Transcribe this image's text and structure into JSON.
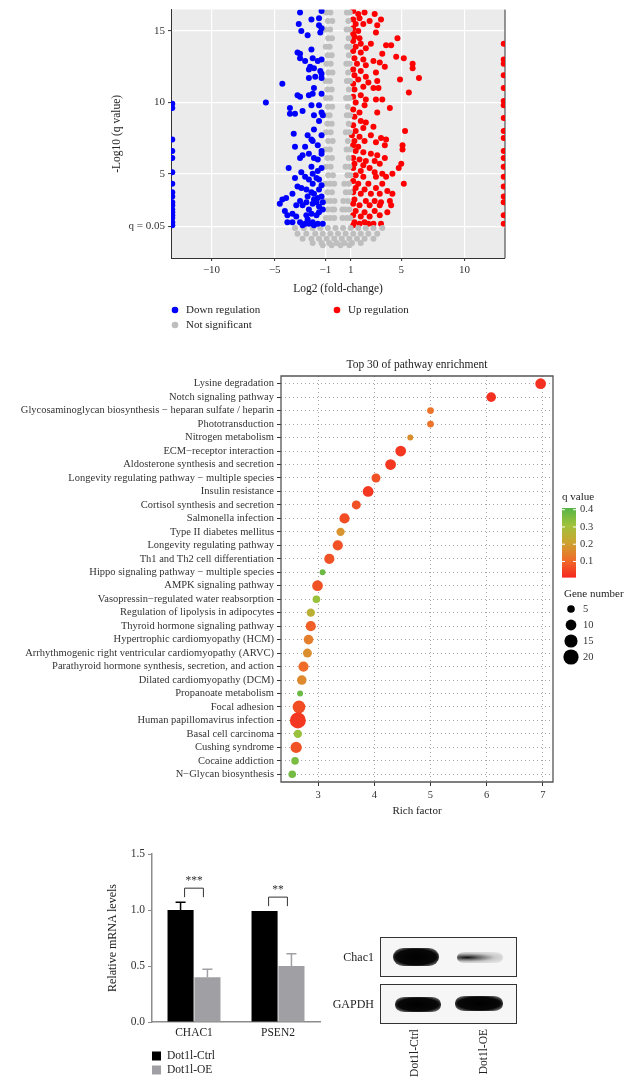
{
  "chart_data": [
    {
      "type": "scatter",
      "xlabel": "Log2 (fold-change)",
      "ylabel": "-Log10 (q value)",
      "xlim": [
        -13.2,
        13.2
      ],
      "ylim": [
        -0.9,
        16.5
      ],
      "xticks": [
        {
          "value": -10,
          "label": "−10"
        },
        {
          "value": -5,
          "label": "−5"
        },
        {
          "value": -1,
          "label": "−1"
        },
        1,
        5,
        10
      ],
      "yticks": [
        5,
        10,
        15
      ],
      "ref_lines": [
        {
          "axis": "y",
          "value": 1.301,
          "color": "#ffffff"
        }
      ],
      "annotations": [
        "q = 0.05"
      ],
      "grid": true,
      "legend": "bottom left",
      "marker": "circle",
      "series": [
        {
          "name": "Down regulation",
          "color": "#0000ff",
          "x": [
            -3.0,
            -1.3,
            -2.1,
            -1.5,
            -3.1,
            -1.5,
            -2.9,
            -2.4,
            -1.4,
            -1.3,
            -2.1,
            -3.2,
            -3.0,
            -3.0,
            -2.6,
            -2.0,
            -1.6,
            -1.3,
            -2.2,
            -1.9,
            -2.3,
            -1.4,
            -1.3,
            -1.8,
            -1.3,
            -2.3,
            -4.4,
            -1.9,
            -3.2,
            -3.0,
            -2.3,
            -2.0,
            -1.3,
            -5.7,
            -2.1,
            -1.5,
            -3.8,
            -3.8,
            -3.4,
            -2.8,
            -1.3,
            -1.2,
            -1.9,
            -1.5,
            -3.5,
            -1.9,
            -2.4,
            -2.1,
            -2.0,
            -1.3,
            -3.4,
            -2.6,
            -1.6,
            -1.3,
            -2.8,
            -3.0,
            -2.3,
            -1.9,
            -1.6,
            -1.3,
            -3.9,
            -3.4,
            -2.1,
            -2.0,
            -1.6,
            -1.3,
            -2.9,
            -2.6,
            -2.3,
            -2.0,
            -1.7,
            -1.5,
            -3.2,
            -2.9,
            -2.5,
            -2.1,
            -1.9,
            -1.5,
            -1.3,
            -3.6,
            -4.1,
            -4.4,
            -4.6,
            -4.2,
            -4.0,
            -3.6,
            -3.3,
            -3.0,
            -2.8,
            -2.5,
            -2.3,
            -2.0,
            -1.7,
            -1.6,
            -1.3,
            -1.2,
            -2.5,
            -2.1,
            -1.7,
            -1.5,
            -1.2,
            -4.0,
            -3.6,
            -3.0,
            -2.6,
            -2.4,
            -2.0,
            -1.6,
            -1.2,
            -2.8,
            -2.3,
            -1.9,
            -3.3,
            -1.5,
            -1.9,
            -2.4,
            -13.1,
            -13.1,
            -13.1,
            -13.1,
            -13.1,
            -13.1,
            -13.1,
            -13.1,
            -13.1,
            -13.1,
            -13.1,
            -13.1,
            -13.1,
            -13.1,
            -13.1,
            -13.1,
            -13.1
          ],
          "values": [
            16.3,
            16.4,
            15.8,
            15.9,
            15.5,
            15.4,
            15.0,
            14.7,
            14.9,
            15.2,
            13.7,
            13.5,
            13.4,
            13.1,
            12.9,
            13.1,
            12.9,
            13.0,
            12.5,
            12.4,
            12.3,
            12.2,
            12.0,
            11.8,
            11.7,
            11.7,
            11.3,
            11.0,
            10.5,
            10.4,
            10.5,
            10.6,
            10.6,
            10.0,
            9.8,
            9.8,
            9.6,
            9.2,
            9.2,
            9.4,
            9.3,
            9.1,
            9.1,
            8.7,
            7.8,
            8.1,
            7.7,
            7.4,
            7.3,
            7.7,
            6.9,
            6.9,
            7.0,
            6.6,
            6.3,
            6.1,
            6.4,
            6.1,
            6.0,
            6.4,
            5.4,
            4.7,
            5.5,
            5.0,
            5.2,
            5.4,
            5.1,
            4.8,
            4.6,
            4.3,
            4.7,
            4.6,
            4.1,
            4.0,
            3.9,
            3.7,
            3.6,
            3.9,
            4.2,
            3.6,
            3.3,
            3.2,
            2.9,
            2.4,
            2.1,
            2.2,
            2.0,
            3.1,
            2.8,
            3.0,
            2.5,
            2.9,
            3.0,
            3.3,
            3.4,
            3.0,
            2.1,
            2.2,
            2.1,
            2.3,
            2.5,
            1.6,
            1.6,
            1.6,
            1.5,
            1.8,
            1.6,
            1.5,
            1.5,
            1.4,
            1.5,
            1.4,
            2.8,
            2.7,
            3.2,
            3.4,
            9.9,
            9.6,
            7.4,
            6.6,
            6.1,
            5.1,
            4.3,
            3.7,
            3.4,
            3.0,
            2.8,
            2.5,
            2.3,
            2.1,
            1.9,
            1.6,
            1.4
          ]
        },
        {
          "name": "Not significant",
          "color": "#bebebe",
          "x": [
            -0.95,
            -0.6,
            0.7,
            0.93,
            -0.8,
            -0.45,
            0.82,
            -1.0,
            -0.62,
            0.68,
            0.95,
            -0.78,
            -0.48,
            0.84,
            -0.97,
            -0.66,
            0.72,
            0.94,
            -0.82,
            -0.5,
            0.86,
            -0.92,
            -0.58,
            0.66,
            0.93,
            -0.76,
            -0.44,
            0.8,
            -0.98,
            -0.64,
            0.7,
            0.95,
            -0.84,
            -0.5,
            0.86,
            -0.95,
            -0.6,
            0.64,
            0.92,
            -0.8,
            -0.46,
            0.78,
            -1.0,
            -0.66,
            0.7,
            0.95,
            -0.84,
            -0.5,
            0.85,
            -0.94,
            -0.58,
            0.62,
            0.92,
            -0.78,
            -0.42,
            0.78,
            -0.98,
            -0.64,
            0.68,
            0.95,
            -0.84,
            -0.48,
            0.85,
            -0.94,
            -0.58,
            0.6,
            0.9,
            -0.78,
            -0.4,
            0.75,
            0.97,
            -0.98,
            -0.62,
            -0.3,
            0.5,
            0.86,
            -0.84,
            -0.48,
            0.62,
            0.95,
            -0.96,
            -0.62,
            -0.28,
            0.42,
            0.78,
            -0.8,
            -0.46,
            -0.3,
            0.35,
            0.6,
            0.9,
            -0.95,
            -0.62,
            -0.3,
            0.35,
            0.68,
            0.96,
            -3.4,
            -2.7,
            -2.0,
            -1.4,
            -0.8,
            -0.2,
            0.4,
            1.0,
            1.6,
            2.2,
            2.8,
            3.5,
            -3.2,
            -2.5,
            -1.8,
            -1.2,
            -0.6,
            0,
            0.6,
            1.2,
            1.8,
            2.4,
            3.1,
            -2.8,
            -2.1,
            -1.5,
            -0.9,
            -0.3,
            0.3,
            0.9,
            1.5,
            2.1,
            2.8,
            -2.0,
            -1.3,
            -0.7,
            -0.1,
            0.5,
            1.1,
            1.8,
            -1.2,
            -0.5,
            0.2,
            0.9
          ],
          "values": [
            16.3,
            16.3,
            16.3,
            16.3,
            15.7,
            15.7,
            15.7,
            15.1,
            15.1,
            15.1,
            15.1,
            14.5,
            14.5,
            14.5,
            13.9,
            13.9,
            13.9,
            13.9,
            13.3,
            13.3,
            13.3,
            12.7,
            12.7,
            12.7,
            12.7,
            12.1,
            12.1,
            12.1,
            11.5,
            11.5,
            11.5,
            11.5,
            10.9,
            10.9,
            10.9,
            10.3,
            10.3,
            10.3,
            10.3,
            9.7,
            9.7,
            9.7,
            9.1,
            9.1,
            9.1,
            9.1,
            8.5,
            8.5,
            8.5,
            7.9,
            7.9,
            7.9,
            7.9,
            7.3,
            7.3,
            7.3,
            6.7,
            6.7,
            6.7,
            6.7,
            6.1,
            6.1,
            6.1,
            5.5,
            5.5,
            5.5,
            5.5,
            4.9,
            4.9,
            4.9,
            4.9,
            4.3,
            4.3,
            4.3,
            4.3,
            4.3,
            3.7,
            3.7,
            3.7,
            3.7,
            3.1,
            3.1,
            3.1,
            3.1,
            3.1,
            2.5,
            2.5,
            2.5,
            2.5,
            2.5,
            2.5,
            1.9,
            1.9,
            1.9,
            1.9,
            1.9,
            1.9,
            1.2,
            1.2,
            1.2,
            1.2,
            1.2,
            1.2,
            1.2,
            1.2,
            1.2,
            1.2,
            1.2,
            1.2,
            0.8,
            0.8,
            0.8,
            0.8,
            0.8,
            0.8,
            0.8,
            0.8,
            0.8,
            0.8,
            0.8,
            0.45,
            0.45,
            0.45,
            0.45,
            0.45,
            0.45,
            0.45,
            0.45,
            0.45,
            0.45,
            0.15,
            0.15,
            0.15,
            0.15,
            0.15,
            0.15,
            0.15,
            0,
            0,
            0,
            0
          ]
        },
        {
          "name": "Up regulation",
          "color": "#ff0000",
          "x": [
            1.2,
            1.6,
            2.1,
            2.9,
            1.2,
            1.7,
            2.5,
            3.4,
            1.4,
            2.0,
            3.1,
            1.2,
            1.6,
            1.2,
            3.0,
            1.3,
            1.7,
            4.7,
            1.2,
            1.8,
            2.6,
            3.8,
            4.2,
            1.4,
            2.2,
            1.2,
            1.8,
            3.5,
            4.6,
            5.2,
            1.3,
            2.0,
            2.8,
            3.3,
            5.9,
            1.5,
            2.2,
            3.7,
            5.9,
            1.2,
            1.8,
            3.0,
            1.3,
            2.2,
            6.4,
            1.6,
            2.4,
            3.1,
            4.9,
            1.2,
            2.0,
            1.3,
            2.8,
            3.2,
            1.8,
            5.6,
            1.2,
            2.2,
            3.0,
            3.5,
            1.4,
            2.1,
            1.2,
            1.7,
            4.1,
            3.1,
            1.3,
            1.8,
            2.2,
            1.2,
            2.0,
            2.8,
            1.4,
            5.3,
            1.1,
            1.7,
            2.6,
            3.4,
            1.3,
            2.1,
            3.8,
            3.0,
            1.2,
            1.6,
            3.7,
            5.1,
            5.1,
            1.4,
            2.0,
            2.6,
            3.1,
            1.2,
            1.7,
            3.7,
            2.2,
            2.9,
            1.3,
            2.0,
            3.3,
            5.0,
            1.2,
            1.8,
            2.5,
            2.9,
            3.5,
            4.8,
            1.4,
            2.0,
            3.0,
            3.8,
            4.3,
            1.2,
            1.6,
            2.4,
            3.5,
            5.2,
            1.4,
            2.1,
            3.0,
            3.9,
            1.2,
            1.8,
            2.6,
            3.3,
            4.3,
            1.3,
            2.2,
            2.9,
            3.4,
            4.1,
            1.2,
            1.7,
            2.5,
            3.3,
            4.2,
            1.4,
            2.1,
            2.9,
            3.9,
            1.2,
            1.8,
            2.5,
            3.3,
            1.3,
            2.1,
            2.8,
            3.4,
            1.2,
            1.7,
            2.4,
            13.1,
            13.1,
            13.1,
            13.1,
            13.1,
            13.1,
            13.1,
            13.1,
            13.1,
            13.1,
            13.1,
            13.1,
            13.1,
            13.1,
            13.1,
            13.1,
            13.1,
            13.1,
            13.1
          ],
          "values": [
            16.4,
            16.2,
            16.3,
            16.2,
            15.8,
            15.9,
            15.7,
            15.8,
            15.5,
            15.5,
            15.4,
            15.2,
            15.0,
            14.8,
            14.9,
            14.6,
            14.5,
            14.5,
            14.3,
            14.1,
            14.1,
            14.0,
            14.0,
            13.9,
            13.8,
            13.6,
            13.5,
            13.4,
            13.2,
            13.1,
            13.1,
            13.0,
            12.9,
            12.8,
            12.7,
            12.7,
            12.6,
            12.5,
            12.4,
            12.3,
            12.2,
            12.1,
            11.9,
            11.8,
            11.7,
            11.6,
            11.4,
            11.5,
            11.6,
            11.3,
            11.1,
            10.9,
            11.0,
            11.0,
            10.5,
            10.7,
            10.4,
            10.2,
            10.2,
            10.2,
            10.0,
            9.8,
            9.5,
            9.3,
            9.6,
            9.3,
            9.0,
            8.7,
            8.6,
            8.4,
            8.2,
            8.3,
            8.0,
            8.0,
            7.7,
            7.6,
            7.7,
            7.5,
            7.3,
            7.3,
            7.4,
            7.2,
            7.0,
            6.9,
            7.0,
            7.0,
            6.7,
            6.6,
            6.5,
            6.4,
            6.3,
            6.1,
            6.0,
            6.1,
            5.9,
            5.9,
            5.7,
            5.6,
            5.7,
            5.7,
            5.4,
            5.2,
            5.4,
            5.1,
            5.0,
            5.4,
            4.9,
            4.8,
            4.8,
            4.8,
            5.0,
            4.5,
            4.3,
            4.3,
            4.3,
            4.3,
            4.0,
            3.9,
            4.0,
            3.8,
            3.7,
            3.6,
            3.6,
            3.6,
            3.6,
            3.2,
            3.1,
            3.1,
            3.0,
            3.1,
            2.9,
            2.8,
            2.8,
            2.8,
            2.8,
            2.4,
            2.3,
            2.4,
            2.3,
            2.1,
            2.0,
            2.0,
            2.1,
            1.6,
            1.6,
            1.5,
            1.5,
            1.4,
            1.5,
            1.5,
            14.1,
            13.0,
            12.7,
            11.9,
            11.0,
            10.1,
            9.8,
            8.9,
            8.0,
            7.5,
            6.6,
            6.1,
            5.5,
            4.8,
            4.1,
            3.4,
            3.0,
            2.1,
            1.5
          ]
        }
      ]
    },
    {
      "type": "bubble",
      "title": "Top 30 of pathway enrichment",
      "xlabel": "Rich factor",
      "orientation": "horizontal",
      "categories": [
        "Lysine degradation",
        "Notch signaling pathway",
        "Glycosaminoglycan biosynthesis − heparan sulfate / heparin",
        "Phototransduction",
        "Nitrogen metabolism",
        "ECM−receptor interaction",
        "Aldosterone synthesis and secretion",
        "Longevity regulating pathway − multiple species",
        "Insulin resistance",
        "Cortisol synthesis and secretion",
        "Salmonella infection",
        "Type II diabetes mellitus",
        "Longevity regulating pathway",
        "Th1 and Th2 cell differentiation",
        "Hippo signaling pathway − multiple species",
        "AMPK signaling pathway",
        "Vasopressin−regulated water reabsorption",
        "Regulation of lipolysis in adipocytes",
        "Thyroid hormone signaling pathway",
        "Hypertrophic cardiomyopathy (HCM)",
        "Arrhythmogenic right ventricular cardiomyopathy (ARVC)",
        "Parathyroid hormone synthesis, secretion, and action",
        "Dilated cardiomyopathy (DCM)",
        "Propanoate metabolism",
        "Focal adhesion",
        "Human papillomavirus infection",
        "Basal cell carcinoma",
        "Cushing syndrome",
        "Cocaine addiction",
        "N−Glycan biosynthesis"
      ],
      "values": [
        6.96,
        6.08,
        5.0,
        5.0,
        4.64,
        4.47,
        4.29,
        4.03,
        3.89,
        3.68,
        3.47,
        3.4,
        3.35,
        3.2,
        3.08,
        2.99,
        2.97,
        2.87,
        2.87,
        2.83,
        2.81,
        2.74,
        2.71,
        2.68,
        2.66,
        2.64,
        2.64,
        2.61,
        2.59,
        2.54
      ],
      "sizes": [
        10,
        8,
        4,
        4,
        3,
        10,
        10,
        7,
        10,
        7,
        9,
        6,
        9,
        9,
        3,
        10,
        5,
        6,
        9,
        8,
        7,
        9,
        8,
        3,
        14,
        22,
        6,
        11,
        5,
        5
      ],
      "cvalues": [
        0.02,
        0.02,
        0.12,
        0.12,
        0.17,
        0.03,
        0.03,
        0.07,
        0.03,
        0.07,
        0.06,
        0.18,
        0.07,
        0.07,
        0.38,
        0.07,
        0.32,
        0.25,
        0.09,
        0.14,
        0.17,
        0.11,
        0.16,
        0.38,
        0.06,
        0.03,
        0.32,
        0.07,
        0.36,
        0.37
      ],
      "clabel": "q value",
      "clim": [
        0.01,
        0.41
      ],
      "cticks": [
        0.1,
        0.2,
        0.3,
        0.4
      ],
      "size_legend": [
        5,
        10,
        15,
        20
      ],
      "legend_title": "Gene number",
      "xlim": [
        2.34,
        7.18
      ],
      "xticks": [
        3,
        4,
        5,
        6,
        7
      ],
      "grid": true,
      "marker": "circle"
    },
    {
      "type": "bar",
      "ylabel": "Relative mRNA levels",
      "categories": [
        "CHAC1",
        "PSEN2"
      ],
      "ylim": [
        0,
        1.5
      ],
      "yticks": [
        {
          "value": 0,
          "label": "0.0"
        },
        {
          "value": 0.5,
          "label": "0.5"
        },
        {
          "value": 1,
          "label": "1.0"
        },
        {
          "value": 1.5,
          "label": "1.5"
        }
      ],
      "legend": "bottom left",
      "annotations": [
        "***",
        "**"
      ],
      "series": [
        {
          "name": "Dot1l-Ctrl",
          "color": "#000000",
          "values": [
            1.0,
            0.99
          ],
          "errors": [
            [
              1.0,
              1.07
            ],
            null
          ]
        },
        {
          "name": "Dot1l-OE",
          "color": "#a0a0a4",
          "values": [
            0.4,
            0.5
          ],
          "errors": [
            [
              0.4,
              0.47
            ],
            [
              0.5,
              0.61
            ]
          ]
        }
      ]
    },
    {
      "type": "other",
      "categories": [
        "Dot1l-Ctrl",
        "Dot1l-OE"
      ],
      "y_categories": [
        "Chac1",
        "GAPDH"
      ]
    }
  ]
}
